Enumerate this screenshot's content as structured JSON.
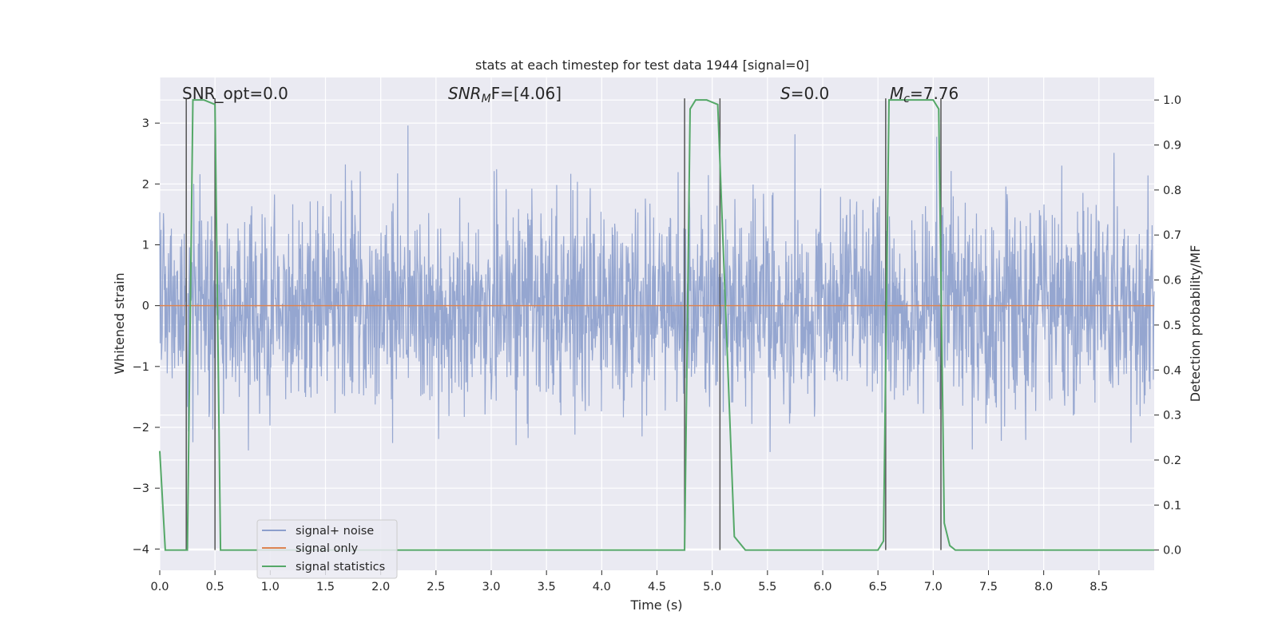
{
  "chart_data": {
    "type": "line",
    "title": "stats at each timestep for test data 1944 [signal=0]",
    "xlabel": "Time (s)",
    "ylabel": "Whitened strain",
    "ylabel_right": "Detection probability/MF",
    "xlim": [
      0.0,
      9.0
    ],
    "ylim": [
      -4.35,
      3.75
    ],
    "ylim_right": [
      -0.045,
      1.05
    ],
    "x_ticks": [
      0.0,
      0.5,
      1.0,
      1.5,
      2.0,
      2.5,
      3.0,
      3.5,
      4.0,
      4.5,
      5.0,
      5.5,
      6.0,
      6.5,
      7.0,
      7.5,
      8.0,
      8.5
    ],
    "x_tick_labels": [
      "0.0",
      "0.5",
      "1.0",
      "1.5",
      "2.0",
      "2.5",
      "3.0",
      "3.5",
      "4.0",
      "4.5",
      "5.0",
      "5.5",
      "6.0",
      "6.5",
      "7.0",
      "7.5",
      "8.0",
      "8.5"
    ],
    "y_ticks": [
      -4,
      -3,
      -2,
      -1,
      0,
      1,
      2,
      3
    ],
    "y_tick_labels": [
      "−4",
      "−3",
      "−2",
      "−1",
      "0",
      "1",
      "2",
      "3"
    ],
    "y_right_ticks": [
      0.0,
      0.1,
      0.2,
      0.3,
      0.4,
      0.5,
      0.6,
      0.7,
      0.8,
      0.9,
      1.0
    ],
    "y_right_tick_labels": [
      "0.0",
      "0.1",
      "0.2",
      "0.3",
      "0.4",
      "0.5",
      "0.6",
      "0.7",
      "0.8",
      "0.9",
      "1.0"
    ],
    "grid": true,
    "legend_position": "lower-left",
    "annotations": {
      "snr_opt": "SNR_opt=0.0",
      "snr_mf_sym": "SNR",
      "snr_mf_sub": "M",
      "snr_mf_rest": "F=[4.06]",
      "s_sym": "S",
      "s_rest": "=0.0",
      "mc_sym": "M",
      "mc_sub": "c",
      "mc_rest": "=7.76"
    },
    "series": [
      {
        "name": "signal+ noise",
        "color": "#8c9fcc",
        "description_values": "noise envelope",
        "envelope": {
          "min": -3.4,
          "max": 3.45,
          "typical_std": 0.85
        }
      },
      {
        "name": "signal only",
        "color": "#dd8452",
        "x": [
          0.0,
          9.0
        ],
        "y": [
          0.0,
          0.0
        ]
      },
      {
        "name": "signal statistics",
        "color": "#55a868",
        "axis": "right",
        "x": [
          0.0,
          0.05,
          0.25,
          0.3,
          0.4,
          0.5,
          0.55,
          0.6,
          4.75,
          4.8,
          4.85,
          4.95,
          5.05,
          5.2,
          5.3,
          6.5,
          6.55,
          6.6,
          6.65,
          7.0,
          7.05,
          7.1,
          7.15,
          7.2,
          7.35,
          9.0
        ],
        "y": [
          0.22,
          0.0,
          0.0,
          1.0,
          1.0,
          0.99,
          0.0,
          0.0,
          0.0,
          0.98,
          1.0,
          1.0,
          0.99,
          0.03,
          0.0,
          0.0,
          0.02,
          1.0,
          1.0,
          1.0,
          0.98,
          0.06,
          0.01,
          0.0,
          0.0,
          0.0
        ]
      }
    ],
    "vertical_lines_x": [
      0.24,
      0.5,
      4.75,
      5.07,
      6.57,
      7.07
    ],
    "vertical_line_color": "#555555"
  }
}
